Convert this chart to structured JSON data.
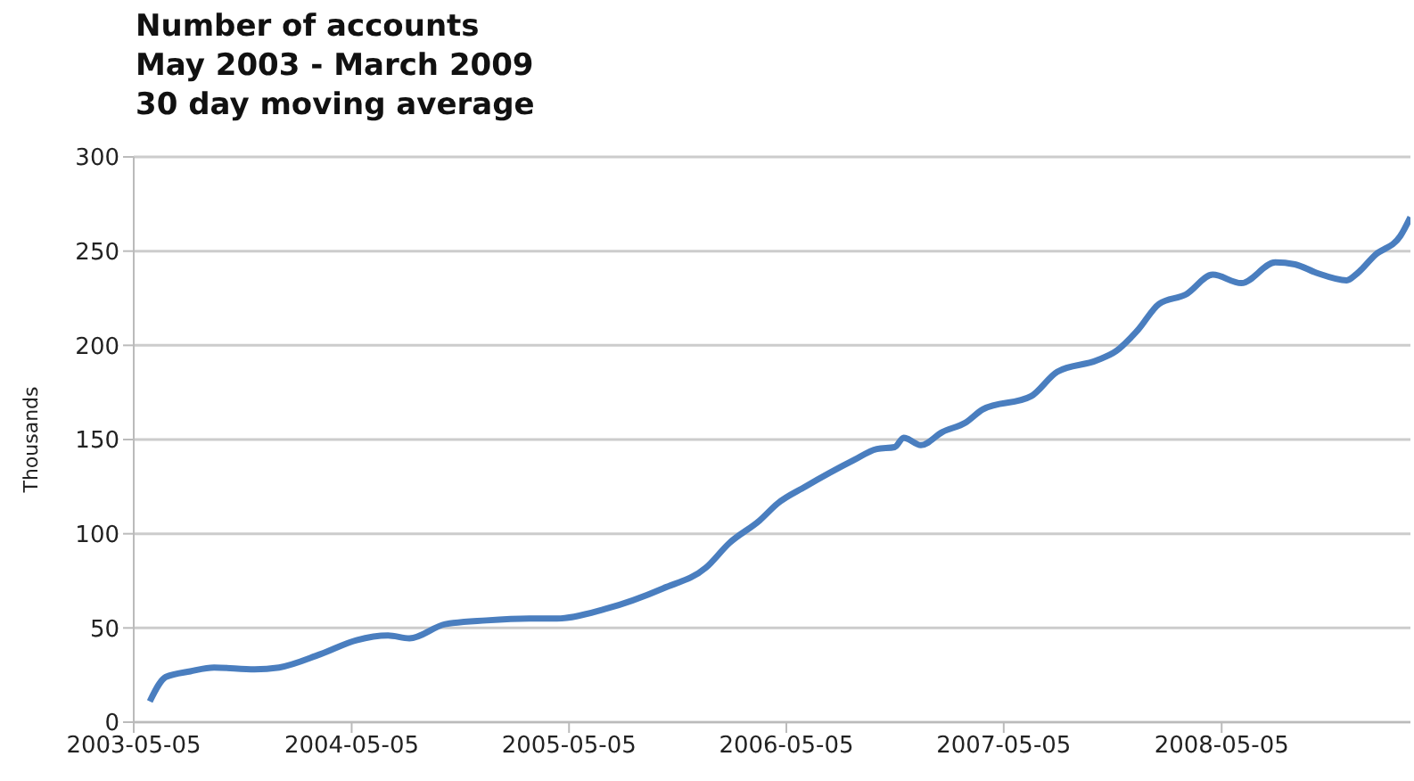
{
  "chart_data": {
    "type": "line",
    "title": "Number of accounts",
    "subtitle": "May 2003 - March 2009\n30 day moving average",
    "ylabel": "Thousands",
    "xlim": [
      "2003-05-05",
      "2009-03-18"
    ],
    "xticks": [
      "2003-05-05",
      "2004-05-05",
      "2005-05-05",
      "2006-05-05",
      "2007-05-05",
      "2008-05-05"
    ],
    "ylim": [
      0,
      300
    ],
    "yticks": [
      0,
      50,
      100,
      150,
      200,
      250,
      300
    ],
    "grid": "y",
    "legend": false,
    "marker": "none",
    "line_style": "solid",
    "series": [
      {
        "color": "#4a7ebf",
        "x": [
          "2003-06-01",
          "2003-06-28",
          "2003-08-08",
          "2003-09-17",
          "2003-11-24",
          "2004-01-04",
          "2004-03-13",
          "2004-05-13",
          "2004-07-05",
          "2004-08-10",
          "2004-10-09",
          "2004-12-17",
          "2005-02-27",
          "2005-04-15",
          "2005-07-04",
          "2005-10-10",
          "2005-12-21",
          "2006-01-29",
          "2006-03-21",
          "2006-04-20",
          "2006-06-06",
          "2006-08-26",
          "2006-10-04",
          "2006-11-03",
          "2006-11-18",
          "2006-12-17",
          "2007-01-22",
          "2007-03-02",
          "2007-03-31",
          "2007-06-20",
          "2007-08-03",
          "2007-10-08",
          "2007-11-10",
          "2007-12-16",
          "2008-01-21",
          "2008-03-06",
          "2008-04-20",
          "2008-06-07",
          "2008-08-03",
          "2008-09-05",
          "2008-10-11",
          "2008-12-01",
          "2008-12-18",
          "2009-01-18",
          "2009-03-01",
          "2009-03-18"
        ],
        "values": [
          11,
          24,
          27,
          29,
          28,
          29,
          36,
          43.5,
          46,
          44.5,
          52,
          54,
          55,
          55,
          60,
          71,
          82,
          95,
          107,
          116,
          125,
          139,
          145,
          146,
          151,
          147,
          154,
          159,
          166,
          173,
          186,
          192,
          197,
          208,
          222,
          227,
          237.5,
          233,
          244,
          243,
          238.5,
          234.5,
          238,
          248,
          258,
          268
        ]
      }
    ]
  }
}
